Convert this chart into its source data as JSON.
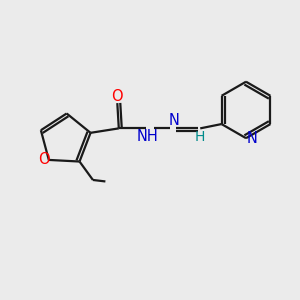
{
  "background_color": "#EBEBEB",
  "bond_color": "#1a1a1a",
  "o_color": "#FF0000",
  "n_color": "#0000CD",
  "teal_color": "#008B8B",
  "figsize": [
    3.0,
    3.0
  ],
  "dpi": 100,
  "xlim": [
    0,
    10
  ],
  "ylim": [
    0,
    10
  ]
}
